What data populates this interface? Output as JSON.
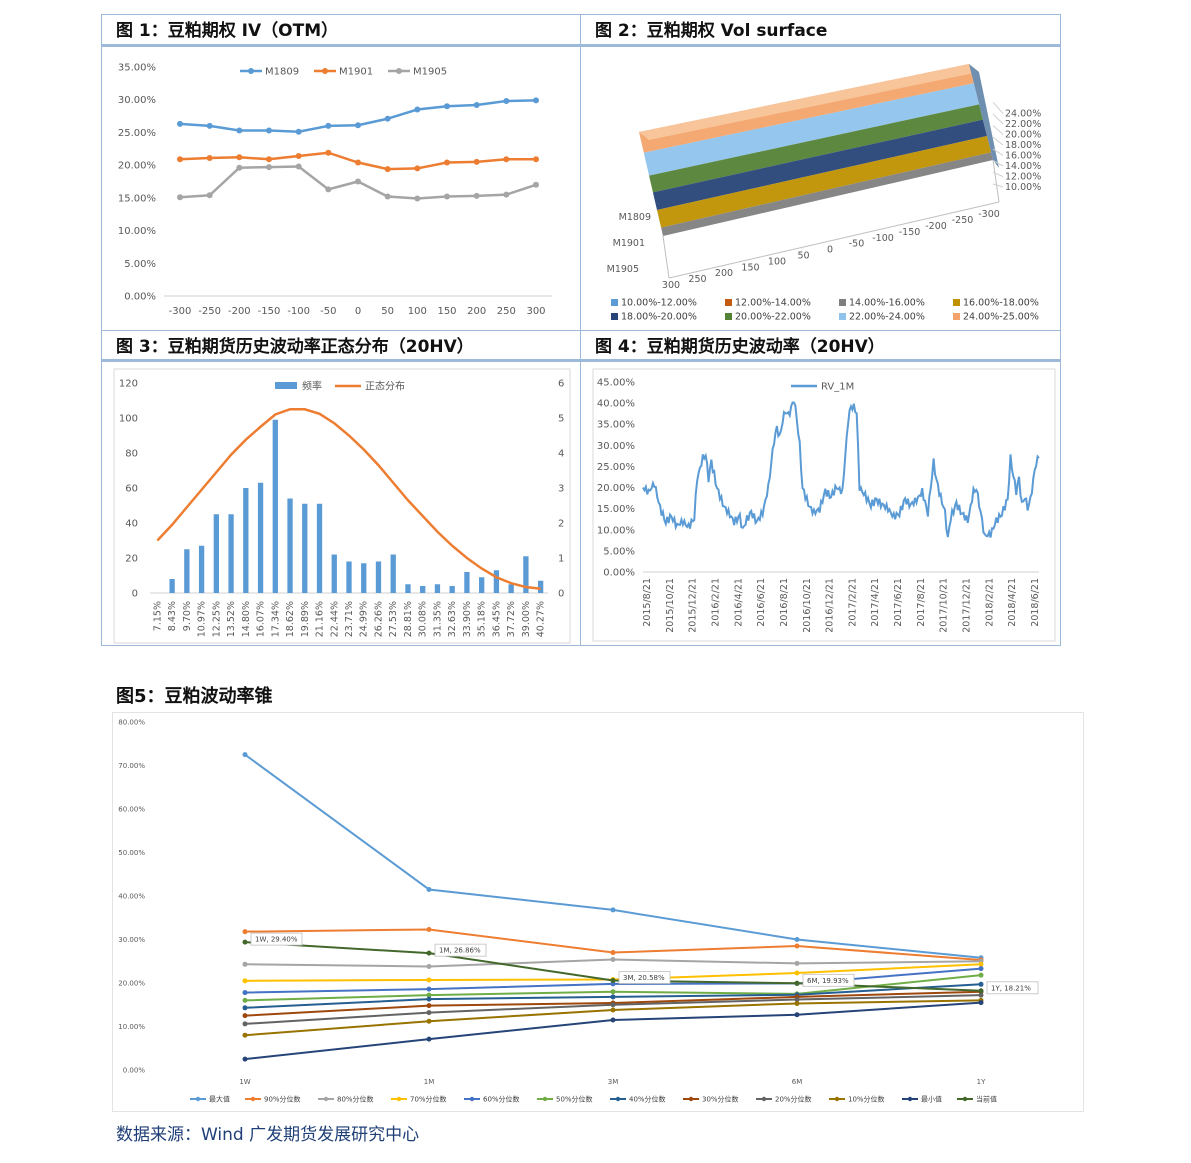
{
  "titles": {
    "fig1": "图 1：豆粕期权 IV（OTM）",
    "fig2": "图 2：豆粕期权 Vol surface",
    "fig3": "图 3：豆粕期货历史波动率正态分布（20HV）",
    "fig4": "图 4：豆粕期货历史波动率（20HV）",
    "fig5": "图5：豆粕波动率锥"
  },
  "source": "数据来源：Wind 广发期货发展研究中心",
  "chart_data": [
    {
      "id": "fig1",
      "type": "line",
      "x": [
        -300,
        -250,
        -200,
        -150,
        -100,
        -50,
        0,
        50,
        100,
        150,
        200,
        250,
        300
      ],
      "y_ticks": [
        "0.00%",
        "5.00%",
        "10.00%",
        "15.00%",
        "20.00%",
        "25.00%",
        "30.00%",
        "35.00%"
      ],
      "ylim": [
        0,
        35
      ],
      "series": [
        {
          "name": "M1809",
          "color": "#5b9bd5",
          "values": [
            26.3,
            26.0,
            25.3,
            25.3,
            25.1,
            26.0,
            26.1,
            27.1,
            28.5,
            29.0,
            29.2,
            29.8,
            29.9
          ]
        },
        {
          "name": "M1901",
          "color": "#ed7d31",
          "values": [
            20.9,
            21.1,
            21.2,
            20.9,
            21.4,
            21.9,
            20.4,
            19.4,
            19.5,
            20.4,
            20.5,
            20.9,
            20.9
          ]
        },
        {
          "name": "M1905",
          "color": "#a5a5a5",
          "values": [
            15.1,
            15.4,
            19.6,
            19.7,
            19.8,
            16.3,
            17.5,
            15.2,
            14.9,
            15.2,
            15.3,
            15.5,
            17.0
          ]
        }
      ]
    },
    {
      "id": "fig2",
      "type": "surface",
      "x_ticks": [
        "300",
        "250",
        "200",
        "150",
        "100",
        "50",
        "0",
        "-50",
        "-100",
        "-150",
        "-200",
        "-250",
        "-300"
      ],
      "contracts": [
        "M1809",
        "M1901",
        "M1905"
      ],
      "z_ticks": [
        "10.00%",
        "12.00%",
        "14.00%",
        "16.00%",
        "18.00%",
        "20.00%",
        "22.00%",
        "24.00%"
      ],
      "legend": [
        {
          "label": "10.00%-12.00%",
          "color": "#5b9bd5"
        },
        {
          "label": "12.00%-14.00%",
          "color": "#c55a11"
        },
        {
          "label": "14.00%-16.00%",
          "color": "#7f7f7f"
        },
        {
          "label": "16.00%-18.00%",
          "color": "#bf9000"
        },
        {
          "label": "18.00%-20.00%",
          "color": "#264478"
        },
        {
          "label": "20.00%-22.00%",
          "color": "#548235"
        },
        {
          "label": "22.00%-24.00%",
          "color": "#8fc3ec"
        },
        {
          "label": "24.00%-25.00%",
          "color": "#f4a46a"
        }
      ]
    },
    {
      "id": "fig3",
      "type": "bar",
      "legend": [
        "频率",
        "正态分布"
      ],
      "categories": [
        "7.15%",
        "8.43%",
        "9.70%",
        "10.97%",
        "12.25%",
        "13.52%",
        "14.80%",
        "16.07%",
        "17.34%",
        "18.62%",
        "19.89%",
        "21.16%",
        "22.44%",
        "23.71%",
        "24.99%",
        "26.26%",
        "27.53%",
        "28.81%",
        "30.08%",
        "31.35%",
        "32.63%",
        "33.90%",
        "35.18%",
        "36.45%",
        "37.72%",
        "39.00%",
        "40.27%"
      ],
      "bar_values": [
        0,
        8,
        25,
        27,
        45,
        45,
        60,
        63,
        99,
        54,
        51,
        51,
        22,
        18,
        17,
        18,
        22,
        5,
        4,
        5,
        4,
        12,
        9,
        13,
        5,
        21,
        7
      ],
      "normal_values": [
        1.5,
        1.95,
        2.45,
        2.95,
        3.45,
        3.95,
        4.38,
        4.75,
        5.1,
        5.25,
        5.25,
        5.12,
        4.85,
        4.5,
        4.1,
        3.65,
        3.15,
        2.65,
        2.2,
        1.75,
        1.35,
        1.0,
        0.7,
        0.45,
        0.28,
        0.17,
        0.12
      ],
      "left_ticks": [
        "0",
        "20",
        "40",
        "60",
        "80",
        "100",
        "120"
      ],
      "right_ticks": [
        "0",
        "1",
        "2",
        "3",
        "4",
        "5",
        "6"
      ],
      "ylim": [
        0,
        120
      ],
      "y2lim": [
        0,
        6
      ]
    },
    {
      "id": "fig4",
      "type": "line",
      "series_name": "RV_1M",
      "x_ticks": [
        "2015/8/21",
        "2015/10/21",
        "2015/12/21",
        "2016/2/21",
        "2016/4/21",
        "2016/6/21",
        "2016/8/21",
        "2016/10/21",
        "2016/12/21",
        "2017/2/21",
        "2017/4/21",
        "2017/6/21",
        "2017/8/21",
        "2017/10/21",
        "2017/12/21",
        "2018/2/21",
        "2018/4/21",
        "2018/6/21"
      ],
      "y_ticks": [
        "0.00%",
        "5.00%",
        "10.00%",
        "15.00%",
        "20.00%",
        "25.00%",
        "30.00%",
        "35.00%",
        "40.00%",
        "45.00%"
      ],
      "ylim": [
        0,
        45
      ],
      "keypoints": [
        [
          0,
          20
        ],
        [
          2,
          19
        ],
        [
          4,
          21
        ],
        [
          6,
          15
        ],
        [
          8,
          12
        ],
        [
          10,
          13
        ],
        [
          12,
          11
        ],
        [
          14,
          12
        ],
        [
          16,
          10.5
        ],
        [
          18,
          13
        ],
        [
          19,
          22
        ],
        [
          21,
          27
        ],
        [
          22,
          28
        ],
        [
          23,
          22
        ],
        [
          24,
          26
        ],
        [
          26,
          20
        ],
        [
          28,
          16
        ],
        [
          30,
          14
        ],
        [
          32,
          12
        ],
        [
          34,
          13
        ],
        [
          35,
          10
        ],
        [
          36,
          12
        ],
        [
          38,
          14
        ],
        [
          40,
          12
        ],
        [
          42,
          14
        ],
        [
          44,
          20
        ],
        [
          45,
          26
        ],
        [
          46,
          31
        ],
        [
          47,
          34
        ],
        [
          48,
          32
        ],
        [
          49,
          36
        ],
        [
          50,
          38
        ],
        [
          51,
          37
        ],
        [
          52,
          39
        ],
        [
          53,
          41
        ],
        [
          54,
          36
        ],
        [
          55,
          30
        ],
        [
          56,
          20
        ],
        [
          58,
          16
        ],
        [
          60,
          14
        ],
        [
          62,
          15
        ],
        [
          64,
          19
        ],
        [
          66,
          18
        ],
        [
          68,
          20
        ],
        [
          70,
          19
        ],
        [
          72,
          36
        ],
        [
          73,
          39
        ],
        [
          74,
          39
        ],
        [
          75,
          38
        ],
        [
          76,
          20
        ],
        [
          78,
          18
        ],
        [
          80,
          16
        ],
        [
          82,
          17
        ],
        [
          84,
          16
        ],
        [
          86,
          15
        ],
        [
          88,
          13
        ],
        [
          90,
          14
        ],
        [
          92,
          17
        ],
        [
          94,
          16
        ],
        [
          96,
          17
        ],
        [
          98,
          19
        ],
        [
          100,
          14
        ],
        [
          101,
          20
        ],
        [
          102,
          26
        ],
        [
          103,
          22
        ],
        [
          104,
          19
        ],
        [
          106,
          14
        ],
        [
          107,
          8
        ],
        [
          108,
          13
        ],
        [
          110,
          16
        ],
        [
          112,
          14
        ],
        [
          114,
          12
        ],
        [
          116,
          19
        ],
        [
          117,
          20
        ],
        [
          118,
          16
        ],
        [
          119,
          12
        ],
        [
          120,
          8.5
        ],
        [
          122,
          9
        ],
        [
          124,
          12
        ],
        [
          126,
          14
        ],
        [
          128,
          17
        ],
        [
          129,
          27
        ],
        [
          130,
          23
        ],
        [
          131,
          19
        ],
        [
          132,
          22
        ],
        [
          133,
          16
        ],
        [
          134,
          18
        ],
        [
          135,
          15
        ],
        [
          136,
          17
        ],
        [
          137,
          22
        ],
        [
          138,
          26
        ],
        [
          139,
          27
        ]
      ],
      "x_span": [
        0,
        139
      ]
    },
    {
      "id": "fig5",
      "type": "line",
      "categories": [
        "1W",
        "1M",
        "3M",
        "6M",
        "1Y"
      ],
      "y_ticks": [
        "0.00%",
        "10.00%",
        "20.00%",
        "30.00%",
        "40.00%",
        "50.00%",
        "60.00%",
        "70.00%",
        "80.00%"
      ],
      "ylim": [
        0,
        80
      ],
      "series": [
        {
          "name": "最大值",
          "color": "#5b9bd5",
          "values": [
            72.5,
            41.5,
            36.8,
            30.0,
            25.8
          ]
        },
        {
          "name": "90%分位数",
          "color": "#ed7d31",
          "values": [
            31.8,
            32.3,
            27.0,
            28.5,
            25.3
          ]
        },
        {
          "name": "80%分位数",
          "color": "#a5a5a5",
          "values": [
            24.3,
            23.8,
            25.4,
            24.5,
            25.0
          ]
        },
        {
          "name": "70%分位数",
          "color": "#ffc000",
          "values": [
            20.5,
            20.7,
            20.8,
            22.3,
            24.3
          ]
        },
        {
          "name": "60%分位数",
          "color": "#4472c4",
          "values": [
            17.8,
            18.6,
            19.8,
            19.9,
            23.3
          ]
        },
        {
          "name": "50%分位数",
          "color": "#70ad47",
          "values": [
            16.0,
            17.2,
            18.0,
            17.5,
            21.8
          ]
        },
        {
          "name": "40%分位数",
          "color": "#255e91",
          "values": [
            14.3,
            16.3,
            16.8,
            17.3,
            19.7
          ]
        },
        {
          "name": "30%分位数",
          "color": "#9e480e",
          "values": [
            12.5,
            14.8,
            15.4,
            16.8,
            18.0
          ]
        },
        {
          "name": "20%分位数",
          "color": "#636363",
          "values": [
            10.6,
            13.2,
            15.0,
            16.2,
            17.2
          ]
        },
        {
          "name": "10%分位数",
          "color": "#997300",
          "values": [
            8.0,
            11.2,
            13.8,
            15.3,
            16.0
          ]
        },
        {
          "name": "最小值",
          "color": "#264478",
          "values": [
            2.5,
            7.1,
            11.5,
            12.7,
            15.5
          ]
        },
        {
          "name": "当前值",
          "color": "#43682b",
          "values": [
            29.4,
            26.86,
            20.58,
            19.93,
            18.21
          ]
        }
      ],
      "annotations": [
        "1W, 29.40%",
        "1M, 26.86%",
        "3M, 20.58%",
        "6M, 19.93%",
        "1Y, 18.21%"
      ]
    }
  ]
}
